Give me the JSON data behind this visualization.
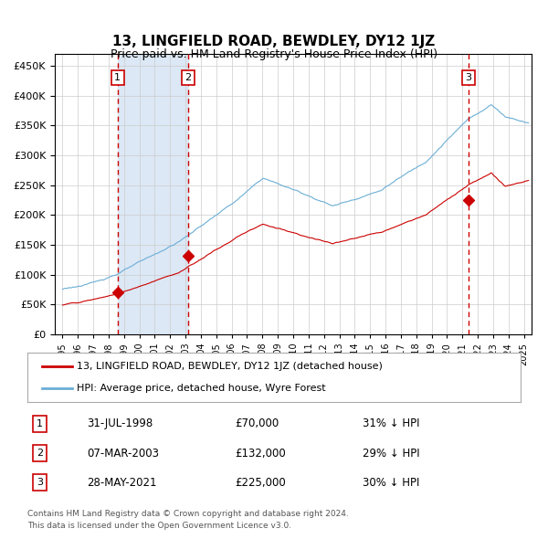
{
  "title": "13, LINGFIELD ROAD, BEWDLEY, DY12 1JZ",
  "subtitle": "Price paid vs. HM Land Registry's House Price Index (HPI)",
  "legend_line1": "13, LINGFIELD ROAD, BEWDLEY, DY12 1JZ (detached house)",
  "legend_line2": "HPI: Average price, detached house, Wyre Forest",
  "footer1": "Contains HM Land Registry data © Crown copyright and database right 2024.",
  "footer2": "This data is licensed under the Open Government Licence v3.0.",
  "table": [
    {
      "num": 1,
      "date": "31-JUL-1998",
      "price": "£70,000",
      "hpi": "31% ↓ HPI"
    },
    {
      "num": 2,
      "date": "07-MAR-2003",
      "price": "£132,000",
      "hpi": "29% ↓ HPI"
    },
    {
      "num": 3,
      "date": "28-MAY-2021",
      "price": "£225,000",
      "hpi": "30% ↓ HPI"
    }
  ],
  "sale_dates_year": [
    1998.58,
    2003.18,
    2021.41
  ],
  "sale_prices": [
    70000,
    132000,
    225000
  ],
  "vline_colors": "#cc0000",
  "hpi_color": "#6baed6",
  "price_color": "#cc0000",
  "bg_color": "#f0f4ff",
  "plot_bg": "#ffffff",
  "shade_color": "#dce8f5",
  "ylim": [
    0,
    470000
  ],
  "xlim_start": 1994.5,
  "xlim_end": 2025.5
}
